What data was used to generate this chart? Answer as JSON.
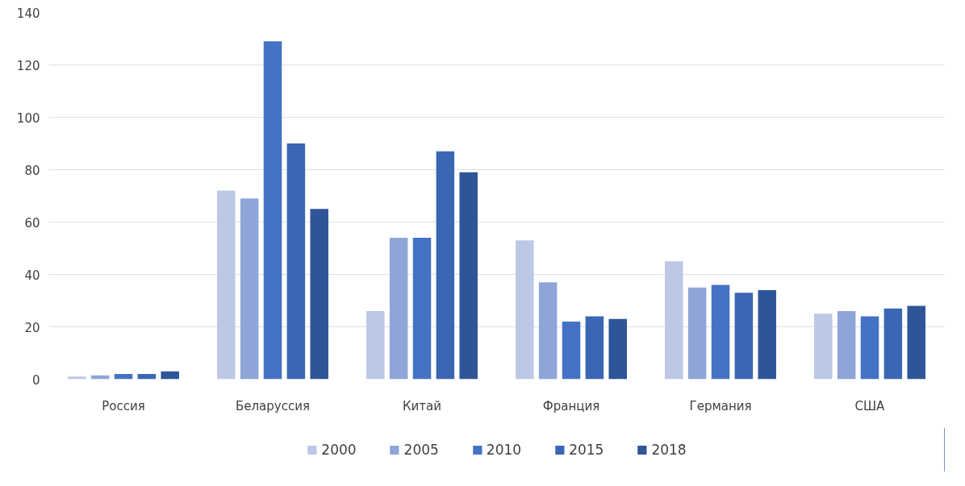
{
  "chart_data": {
    "type": "bar",
    "categories": [
      "Россия",
      "Беларуссия",
      "Китай",
      "Франция",
      "Германия",
      "США"
    ],
    "series": [
      {
        "name": "2000",
        "color": "#bcc8e6",
        "values": [
          1,
          72,
          26,
          53,
          45,
          25
        ]
      },
      {
        "name": "2005",
        "color": "#8fa5d8",
        "values": [
          1.5,
          69,
          54,
          37,
          35,
          26
        ]
      },
      {
        "name": "2010",
        "color": "#4472c4",
        "values": [
          2,
          129,
          54,
          22,
          36,
          24
        ]
      },
      {
        "name": "2015",
        "color": "#3a66b4",
        "values": [
          2,
          90,
          87,
          24,
          33,
          27
        ]
      },
      {
        "name": "2018",
        "color": "#2e5597",
        "values": [
          3,
          65,
          79,
          23,
          34,
          28
        ]
      }
    ],
    "ylim": [
      0,
      140
    ],
    "yticks": [
      0,
      20,
      40,
      60,
      80,
      100,
      120,
      140
    ],
    "grid": "y",
    "legend": "bottom"
  }
}
